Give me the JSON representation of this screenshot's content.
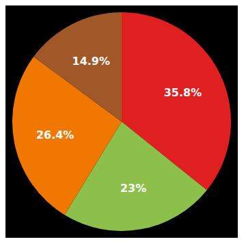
{
  "chart_data": {
    "type": "pie",
    "values": [
      35.8,
      23.0,
      26.4,
      14.9
    ],
    "value_labels": [
      "35.8%",
      "23%",
      "26.4%",
      "14.9%"
    ],
    "colors": [
      "#e02020",
      "#8dc04b",
      "#f07800",
      "#a05828"
    ],
    "data_labels": true
  }
}
